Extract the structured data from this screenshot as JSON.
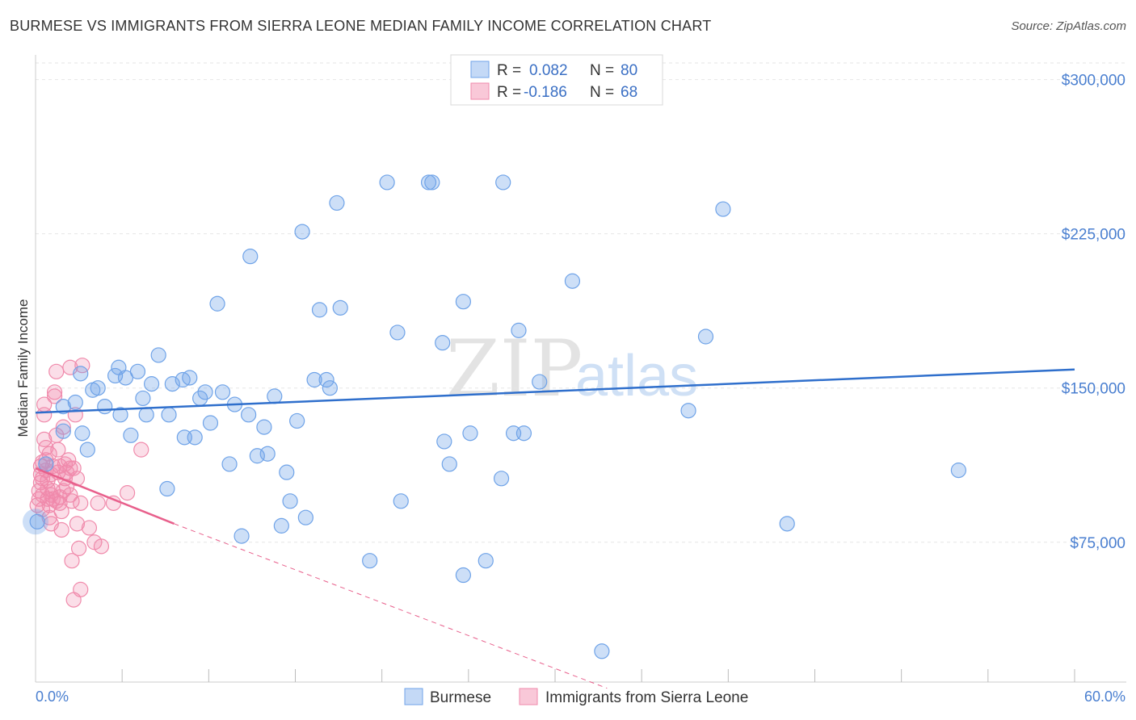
{
  "title": "BURMESE VS IMMIGRANTS FROM SIERRA LEONE MEDIAN FAMILY INCOME CORRELATION CHART",
  "source": "Source: ZipAtlas.com",
  "colors": {
    "burmese": "#6fa3e8",
    "burmese_line": "#2f6fcc",
    "sierra": "#f08aab",
    "sierra_line": "#e8608c",
    "tick": "#4a7fd0"
  },
  "chart_data": {
    "type": "scatter",
    "title": "BURMESE VS IMMIGRANTS FROM SIERRA LEONE MEDIAN FAMILY INCOME CORRELATION CHART",
    "xlabel": "",
    "ylabel": "Median Family Income",
    "xlim": [
      0,
      60
    ],
    "ylim": [
      7000,
      312000
    ],
    "x_tick_labels": {
      "min": "0.0%",
      "max": "60.0%"
    },
    "y_ticks": [
      {
        "value": 75000,
        "label": "$75,000"
      },
      {
        "value": 150000,
        "label": "$150,000"
      },
      {
        "value": 225000,
        "label": "$225,000"
      },
      {
        "value": 300000,
        "label": "$300,000"
      }
    ],
    "grid": true,
    "legend_stats": [
      {
        "r_label": "R =",
        "r": "0.082",
        "n_label": "N =",
        "n": "80"
      },
      {
        "r_label": "R =",
        "r": "-0.186",
        "n_label": "N =",
        "n": "68"
      }
    ],
    "series": [
      {
        "name": "Burmese",
        "trend": {
          "x": [
            0,
            60
          ],
          "y": [
            138000,
            159000
          ],
          "dashed_to": null
        },
        "points": [
          [
            0.1,
            85000
          ],
          [
            0.6,
            113000
          ],
          [
            1.6,
            129000
          ],
          [
            1.6,
            141000
          ],
          [
            2.3,
            143000
          ],
          [
            2.6,
            157000
          ],
          [
            3.0,
            120000
          ],
          [
            3.3,
            149000
          ],
          [
            3.6,
            150000
          ],
          [
            4.0,
            141000
          ],
          [
            4.6,
            156000
          ],
          [
            4.8,
            160000
          ],
          [
            4.9,
            137000
          ],
          [
            5.2,
            155000
          ],
          [
            5.5,
            127000
          ],
          [
            5.9,
            158000
          ],
          [
            6.2,
            145000
          ],
          [
            6.4,
            137000
          ],
          [
            6.7,
            152000
          ],
          [
            7.1,
            166000
          ],
          [
            7.6,
            101000
          ],
          [
            7.7,
            137000
          ],
          [
            7.9,
            152000
          ],
          [
            8.5,
            154000
          ],
          [
            8.6,
            126000
          ],
          [
            8.9,
            155000
          ],
          [
            9.2,
            126000
          ],
          [
            9.5,
            145000
          ],
          [
            9.8,
            148000
          ],
          [
            10.1,
            133000
          ],
          [
            10.5,
            191000
          ],
          [
            10.8,
            148000
          ],
          [
            11.2,
            113000
          ],
          [
            11.5,
            142000
          ],
          [
            11.9,
            78000
          ],
          [
            12.3,
            137000
          ],
          [
            12.4,
            214000
          ],
          [
            12.8,
            117000
          ],
          [
            13.2,
            131000
          ],
          [
            13.4,
            118000
          ],
          [
            13.8,
            146000
          ],
          [
            14.2,
            83000
          ],
          [
            14.5,
            109000
          ],
          [
            14.7,
            95000
          ],
          [
            15.1,
            134000
          ],
          [
            15.4,
            226000
          ],
          [
            15.6,
            87000
          ],
          [
            16.1,
            154000
          ],
          [
            16.4,
            188000
          ],
          [
            16.8,
            154000
          ],
          [
            17.0,
            150000
          ],
          [
            17.4,
            240000
          ],
          [
            17.6,
            189000
          ],
          [
            19.3,
            66000
          ],
          [
            20.3,
            250000
          ],
          [
            20.9,
            177000
          ],
          [
            21.1,
            95000
          ],
          [
            22.7,
            250000
          ],
          [
            22.9,
            250000
          ],
          [
            23.5,
            172000
          ],
          [
            23.6,
            124000
          ],
          [
            23.9,
            113000
          ],
          [
            24.7,
            59000
          ],
          [
            24.7,
            192000
          ],
          [
            25.1,
            128000
          ],
          [
            26.0,
            66000
          ],
          [
            26.9,
            106000
          ],
          [
            27.0,
            250000
          ],
          [
            27.6,
            128000
          ],
          [
            27.9,
            178000
          ],
          [
            28.2,
            128000
          ],
          [
            29.1,
            153000
          ],
          [
            31.0,
            202000
          ],
          [
            32.7,
            22000
          ],
          [
            37.7,
            139000
          ],
          [
            38.7,
            175000
          ],
          [
            39.7,
            237000
          ],
          [
            43.4,
            84000
          ],
          [
            53.3,
            110000
          ],
          [
            2.7,
            128000
          ]
        ]
      },
      {
        "name": "Immigrants from Sierra Leone",
        "trend": {
          "x": [
            0,
            8
          ],
          "y": [
            111000,
            84000
          ],
          "dashed_to": {
            "x": 33.0,
            "y": 4000
          }
        },
        "points": [
          [
            0.1,
            93000
          ],
          [
            0.2,
            96000
          ],
          [
            0.2,
            100000
          ],
          [
            0.3,
            104000
          ],
          [
            0.3,
            108000
          ],
          [
            0.3,
            112000
          ],
          [
            0.4,
            114000
          ],
          [
            0.4,
            98000
          ],
          [
            0.4,
            91000
          ],
          [
            0.5,
            142000
          ],
          [
            0.5,
            137000
          ],
          [
            0.5,
            125000
          ],
          [
            0.6,
            121000
          ],
          [
            0.6,
            115000
          ],
          [
            0.6,
            110000
          ],
          [
            0.7,
            105000
          ],
          [
            0.7,
            101000
          ],
          [
            0.7,
            96000
          ],
          [
            0.8,
            93000
          ],
          [
            0.8,
            87000
          ],
          [
            0.9,
            84000
          ],
          [
            0.9,
            108000
          ],
          [
            1.0,
            112000
          ],
          [
            1.0,
            100000
          ],
          [
            1.1,
            146000
          ],
          [
            1.1,
            148000
          ],
          [
            1.2,
            127000
          ],
          [
            1.2,
            158000
          ],
          [
            1.3,
            109000
          ],
          [
            1.3,
            120000
          ],
          [
            1.4,
            97000
          ],
          [
            1.4,
            94000
          ],
          [
            1.5,
            90000
          ],
          [
            1.5,
            81000
          ],
          [
            1.6,
            131000
          ],
          [
            1.7,
            113000
          ],
          [
            1.7,
            106000
          ],
          [
            1.8,
            102000
          ],
          [
            1.9,
            115000
          ],
          [
            2.0,
            98000
          ],
          [
            2.0,
            111000
          ],
          [
            2.0,
            160000
          ],
          [
            2.1,
            95000
          ],
          [
            2.1,
            66000
          ],
          [
            2.2,
            47000
          ],
          [
            2.3,
            137000
          ],
          [
            2.4,
            106000
          ],
          [
            2.4,
            84000
          ],
          [
            2.5,
            72000
          ],
          [
            2.6,
            52000
          ],
          [
            2.6,
            94000
          ],
          [
            2.7,
            161000
          ],
          [
            3.1,
            82000
          ],
          [
            3.4,
            75000
          ],
          [
            3.6,
            94000
          ],
          [
            3.8,
            73000
          ],
          [
            4.5,
            94000
          ],
          [
            5.3,
            99000
          ],
          [
            6.1,
            120000
          ],
          [
            0.9,
            98000
          ],
          [
            1.6,
            100000
          ],
          [
            1.2,
            95000
          ],
          [
            0.4,
            106000
          ],
          [
            1.8,
            109000
          ],
          [
            0.8,
            118000
          ],
          [
            1.4,
            112000
          ],
          [
            2.2,
            111000
          ],
          [
            1.0,
            96000
          ]
        ]
      }
    ]
  },
  "legend": {
    "burmese_label": "Burmese",
    "sierra_label": "Immigrants from Sierra Leone"
  },
  "watermark": {
    "zip": "ZIP",
    "atlas": "atlas"
  }
}
